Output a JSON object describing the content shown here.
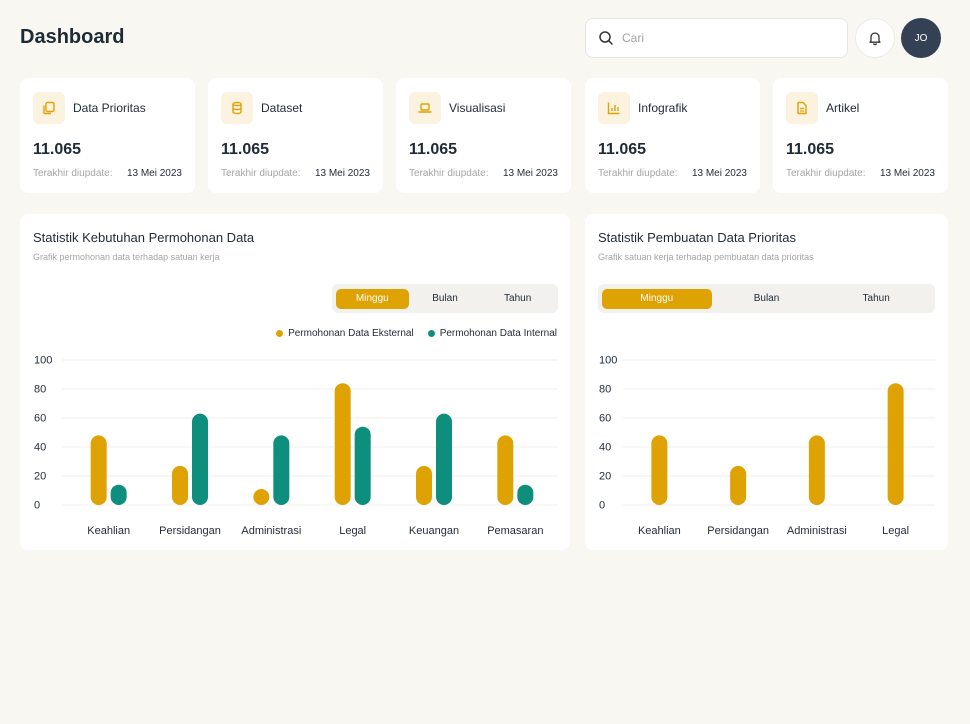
{
  "header": {
    "title": "Dashboard",
    "search_placeholder": "Cari",
    "avatar_initials": "JO"
  },
  "cards": [
    {
      "label": "Data Prioritas",
      "icon": "copy-icon",
      "value": "11.065",
      "updated_label": "Terakhir diupdate:",
      "updated_date": "13 Mei 2023"
    },
    {
      "label": "Dataset",
      "icon": "database-icon",
      "value": "11.065",
      "updated_label": "Terakhir diupdate:",
      "updated_date": "13 Mei 2023"
    },
    {
      "label": "Visualisasi",
      "icon": "laptop-icon",
      "value": "11.065",
      "updated_label": "Terakhir diupdate:",
      "updated_date": "13 Mei 2023"
    },
    {
      "label": "Infografik",
      "icon": "bar-chart-icon",
      "value": "11.065",
      "updated_label": "Terakhir diupdate:",
      "updated_date": "13 Mei 2023"
    },
    {
      "label": "Artikel",
      "icon": "document-icon",
      "value": "11.065",
      "updated_label": "Terakhir diupdate:",
      "updated_date": "13 Mei 2023"
    }
  ],
  "colors": {
    "accent": "#dfa203",
    "teal": "#0e8f7e"
  },
  "panel_left": {
    "title": "Statistik Kebutuhan Permohonan Data",
    "subtitle": "Grafik permohonan data terhadap satuan kerja",
    "tabs": [
      "Minggu",
      "Bulan",
      "Tahun"
    ],
    "active_tab": "Minggu"
  },
  "panel_right": {
    "title": "Statistik Pembuatan Data Prioritas",
    "subtitle": "Grafik satuan kerja terhadap pembuatan data prioritas",
    "tabs": [
      "Minggu",
      "Bulan",
      "Tahun"
    ],
    "active_tab": "Minggu"
  },
  "chart_data": [
    {
      "type": "bar",
      "categories": [
        "Keahlian",
        "Persidangan",
        "Administrasi",
        "Legal",
        "Keuangan",
        "Pemasaran"
      ],
      "series": [
        {
          "name": "Permohonan Data Eksternal",
          "color": "#dfa203",
          "values": [
            48,
            27,
            7,
            84,
            27,
            48
          ]
        },
        {
          "name": "Permohonan Data Internal",
          "color": "#0e8f7e",
          "values": [
            14,
            63,
            48,
            54,
            63,
            14
          ]
        }
      ],
      "yticks": [
        "0",
        "20",
        "40",
        "60",
        "80",
        "100"
      ],
      "ylim": [
        0,
        100
      ],
      "grid": true,
      "legend": "top-right"
    },
    {
      "type": "bar",
      "categories": [
        "Keahlian",
        "Persidangan",
        "Administrasi",
        "Legal"
      ],
      "series": [
        {
          "color": "#dfa203",
          "values": [
            48,
            27,
            48,
            84
          ]
        }
      ],
      "yticks": [
        "0",
        "20",
        "40",
        "60",
        "80",
        "100"
      ],
      "ylim": [
        0,
        100
      ],
      "grid": true
    }
  ]
}
